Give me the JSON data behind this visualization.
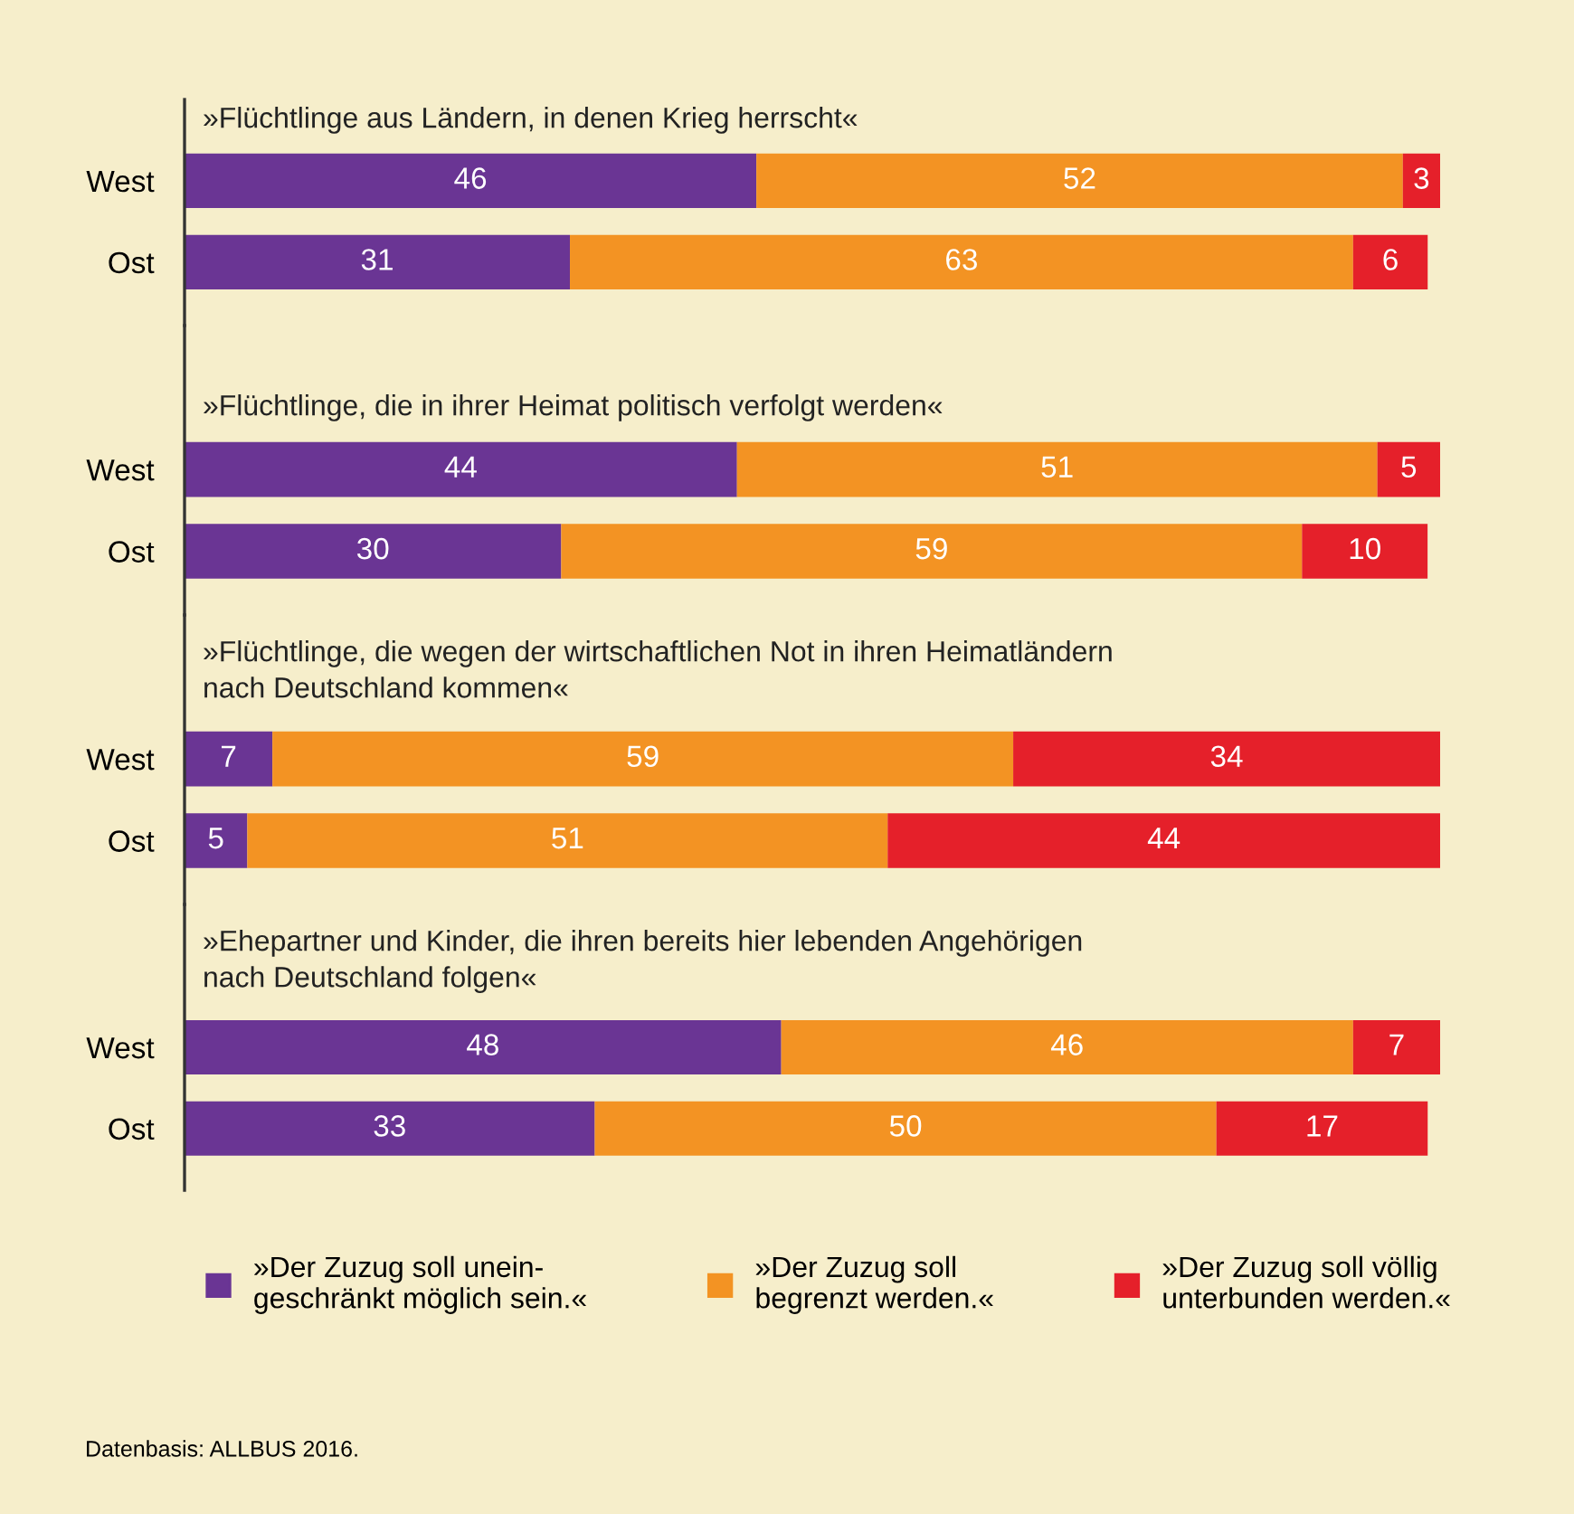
{
  "chart_data": [
    {
      "type": "bar",
      "orientation": "horizontal",
      "stacked": true,
      "data_labels": true,
      "tick_labels": "y",
      "title": "»Flüchtlinge aus Ländern, in denen Krieg herrscht«",
      "categories": [
        "West",
        "Ost"
      ],
      "series": [
        {
          "color": "#6a3594",
          "values": [
            46,
            31
          ]
        },
        {
          "color": "#f39323",
          "values": [
            52,
            63
          ]
        },
        {
          "color": "#e5202a",
          "values": [
            3,
            6
          ]
        }
      ]
    },
    {
      "type": "bar",
      "orientation": "horizontal",
      "stacked": true,
      "data_labels": true,
      "tick_labels": "y",
      "title": "»Flüchtlinge, die in ihrer Heimat politisch verfolgt werden«",
      "categories": [
        "West",
        "Ost"
      ],
      "series": [
        {
          "color": "#6a3594",
          "values": [
            44,
            30
          ]
        },
        {
          "color": "#f39323",
          "values": [
            51,
            59
          ]
        },
        {
          "color": "#e5202a",
          "values": [
            5,
            10
          ]
        }
      ]
    },
    {
      "type": "bar",
      "orientation": "horizontal",
      "stacked": true,
      "data_labels": true,
      "tick_labels": "y",
      "title": "»Flüchtlinge, die wegen der wirtschaftlichen Not in ihren Heimatländern\nnach Deutschland kommen«",
      "categories": [
        "West",
        "Ost"
      ],
      "series": [
        {
          "color": "#6a3594",
          "values": [
            7,
            5
          ]
        },
        {
          "color": "#f39323",
          "values": [
            59,
            51
          ]
        },
        {
          "color": "#e5202a",
          "values": [
            34,
            44
          ]
        }
      ]
    },
    {
      "type": "bar",
      "orientation": "horizontal",
      "stacked": true,
      "data_labels": true,
      "tick_labels": "y",
      "title": "»Ehepartner und Kinder, die ihren bereits hier lebenden Angehörigen\nnach Deutschland folgen«",
      "categories": [
        "West",
        "Ost"
      ],
      "legend": "bottom",
      "series": [
        {
          "name": "»Der Zuzug soll unein-\ngeschränkt möglich sein.«",
          "color": "#6a3594",
          "values": [
            48,
            33
          ]
        },
        {
          "name": "»Der Zuzug soll\nbegrenzt werden.«",
          "color": "#f39323",
          "values": [
            46,
            50
          ]
        },
        {
          "name": "»Der Zuzug soll völlig\nunterbunden werden.«",
          "color": "#e5202a",
          "values": [
            7,
            17
          ]
        }
      ],
      "annotations": [
        "Datenbasis: ALLBUS 2016."
      ]
    }
  ]
}
